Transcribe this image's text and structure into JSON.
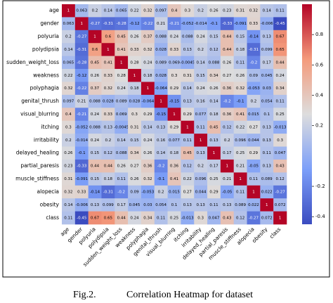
{
  "chart_data": {
    "type": "heatmap",
    "caption_label": "Fig.2.",
    "caption": "Correlation Heatmap for dataset",
    "categories": [
      "age",
      "gender",
      "polyuria",
      "polydipsia",
      "sudden_weight_loss",
      "weakness",
      "polyphagia",
      "genital_thrush",
      "visual_blurring",
      "itching",
      "irritability",
      "delayed_healing",
      "partial_paresis",
      "muscle_stiffness",
      "alopecia",
      "obesity",
      "class"
    ],
    "values": [
      [
        1,
        0.063,
        0.2,
        0.14,
        0.065,
        0.22,
        0.32,
        0.097,
        0.4,
        0.3,
        0.2,
        0.26,
        0.23,
        0.31,
        0.32,
        0.14,
        0.11
      ],
      [
        0.063,
        1,
        -0.27,
        -0.31,
        -0.28,
        -0.12,
        -0.22,
        0.21,
        -0.21,
        -0.052,
        -0.014,
        -0.1,
        -0.33,
        -0.091,
        0.33,
        -0.006,
        -0.45
      ],
      [
        0.2,
        -0.27,
        1,
        0.6,
        0.45,
        0.26,
        0.37,
        0.088,
        0.24,
        0.088,
        0.24,
        0.15,
        0.44,
        0.15,
        -0.14,
        0.13,
        0.67
      ],
      [
        0.14,
        -0.31,
        0.6,
        1,
        0.41,
        0.33,
        0.32,
        0.028,
        0.33,
        0.13,
        0.2,
        0.12,
        0.44,
        0.18,
        -0.31,
        0.099,
        0.65
      ],
      [
        0.065,
        -0.28,
        0.45,
        0.41,
        1,
        0.28,
        0.24,
        0.089,
        0.069,
        -0.0045,
        0.14,
        0.088,
        0.26,
        0.11,
        -0.2,
        0.17,
        0.44
      ],
      [
        0.22,
        -0.12,
        0.26,
        0.33,
        0.28,
        1,
        0.18,
        0.028,
        0.3,
        0.31,
        0.15,
        0.34,
        0.27,
        0.26,
        0.09,
        0.045,
        0.24
      ],
      [
        0.32,
        -0.22,
        0.37,
        0.32,
        0.24,
        0.18,
        1,
        -0.064,
        0.29,
        0.14,
        0.24,
        0.26,
        0.36,
        0.32,
        -0.053,
        0.03,
        0.34
      ],
      [
        0.097,
        0.21,
        0.088,
        0.028,
        0.089,
        0.028,
        -0.064,
        1,
        -0.15,
        0.13,
        0.16,
        0.14,
        -0.2,
        -0.1,
        0.2,
        0.054,
        0.11
      ],
      [
        0.4,
        -0.21,
        0.24,
        0.33,
        0.069,
        0.3,
        0.29,
        -0.15,
        1,
        0.29,
        0.077,
        0.18,
        0.36,
        0.41,
        0.015,
        0.1,
        0.25
      ],
      [
        0.3,
        -0.052,
        0.088,
        0.13,
        -0.0045,
        0.31,
        0.14,
        0.13,
        0.29,
        1,
        0.11,
        0.45,
        0.12,
        0.22,
        0.27,
        0.13,
        -0.013
      ],
      [
        0.2,
        -0.014,
        0.24,
        0.2,
        0.14,
        0.15,
        0.24,
        0.16,
        0.077,
        0.11,
        1,
        0.13,
        0.2,
        0.096,
        0.044,
        0.13,
        0.3
      ],
      [
        0.26,
        -0.1,
        0.15,
        0.12,
        0.088,
        0.34,
        0.26,
        0.14,
        0.18,
        0.45,
        0.13,
        1,
        0.17,
        0.25,
        0.29,
        0.11,
        0.047
      ],
      [
        0.23,
        -0.33,
        0.44,
        0.44,
        0.26,
        0.27,
        0.36,
        -0.2,
        0.36,
        0.12,
        0.2,
        0.17,
        1,
        0.21,
        -0.05,
        0.13,
        0.43
      ],
      [
        0.31,
        -0.091,
        0.15,
        0.18,
        0.11,
        0.26,
        0.32,
        -0.1,
        0.41,
        0.22,
        0.096,
        0.25,
        0.21,
        1,
        0.11,
        0.089,
        0.12
      ],
      [
        0.32,
        0.33,
        -0.14,
        -0.31,
        -0.2,
        0.09,
        -0.053,
        0.2,
        0.015,
        0.27,
        0.044,
        0.29,
        -0.05,
        0.11,
        1,
        0.022,
        -0.27
      ],
      [
        0.14,
        -0.006,
        0.13,
        0.099,
        0.17,
        0.045,
        0.03,
        0.054,
        0.1,
        0.13,
        0.13,
        0.11,
        0.13,
        0.089,
        0.022,
        1,
        0.072
      ],
      [
        0.11,
        -0.45,
        0.67,
        0.65,
        0.44,
        0.24,
        0.34,
        0.11,
        0.25,
        -0.013,
        0.3,
        0.047,
        0.43,
        0.12,
        -0.27,
        0.072,
        1
      ]
    ],
    "colormap": "coolwarm",
    "clim": [
      -0.45,
      1
    ],
    "cticks": [
      0.8,
      0.6,
      0.4,
      0.2,
      -0.2,
      -0.4
    ]
  }
}
